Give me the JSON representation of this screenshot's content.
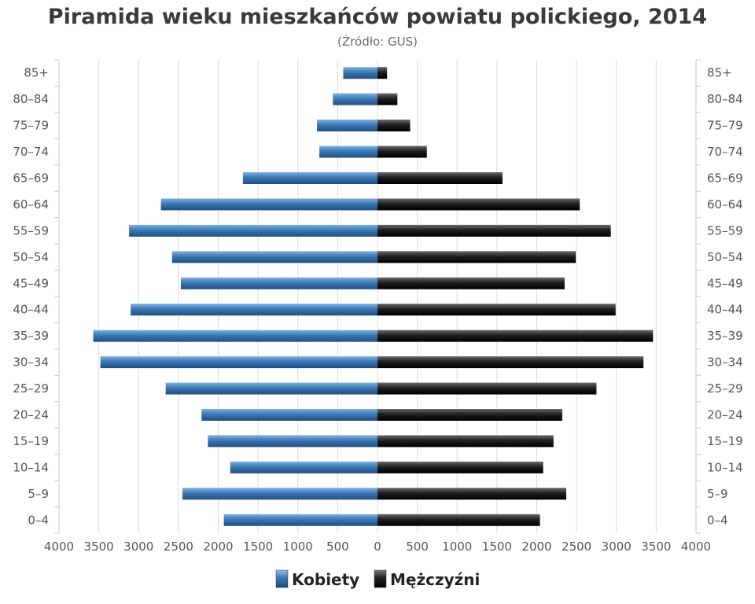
{
  "chart_data": {
    "type": "bar",
    "orientation": "horizontal-population-pyramid",
    "title": "Piramida wieku mieszkańców powiatu polickiego, 2014",
    "subtitle": "(Źródło: GUS)",
    "categories": [
      "0–4",
      "5–9",
      "10–14",
      "15–19",
      "20–24",
      "25–29",
      "30–34",
      "35–39",
      "40–44",
      "45–49",
      "50–54",
      "55–59",
      "60–64",
      "65–69",
      "70–74",
      "75–79",
      "80–84",
      "85+"
    ],
    "series": [
      {
        "name": "Kobiety",
        "side": "left",
        "color": "#3a78b5",
        "values": [
          1930,
          2450,
          1850,
          2130,
          2210,
          2660,
          3480,
          3570,
          3100,
          2470,
          2580,
          3120,
          2720,
          1690,
          730,
          760,
          560,
          430
        ]
      },
      {
        "name": "Mężczyźni",
        "side": "right",
        "color": "#1e1e1e",
        "values": [
          2040,
          2370,
          2080,
          2210,
          2320,
          2750,
          3340,
          3460,
          2990,
          2350,
          2490,
          2930,
          2540,
          1570,
          620,
          410,
          250,
          120
        ]
      }
    ],
    "x_ticks": [
      "4000",
      "3500",
      "3000",
      "2500",
      "2000",
      "1500",
      "1000",
      "500",
      "0",
      "500",
      "1000",
      "1500",
      "2000",
      "2500",
      "3000",
      "3500",
      "4000"
    ],
    "xlim": [
      -4000,
      4000
    ],
    "grid": true,
    "legend_position": "bottom-center"
  }
}
